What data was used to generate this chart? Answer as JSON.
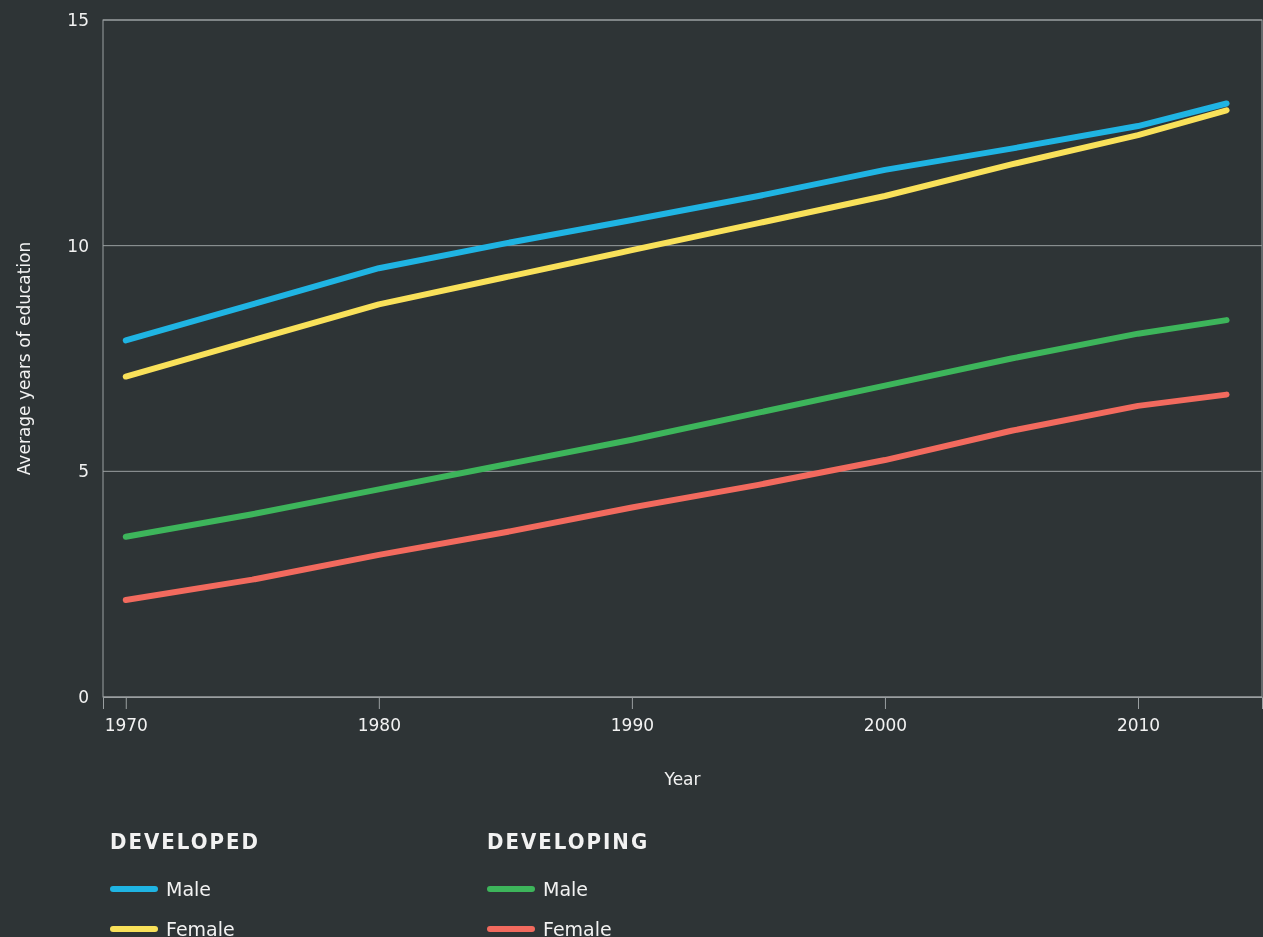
{
  "chart_data": {
    "type": "line",
    "xlabel": "Year",
    "ylabel": "Average years of education",
    "x": [
      1970,
      1975,
      1980,
      1985,
      1990,
      1995,
      2000,
      2005,
      2010,
      2013.5
    ],
    "series": [
      {
        "name": "Male",
        "color": "#1fb4e3",
        "values": [
          7.9,
          8.7,
          9.5,
          10.05,
          10.57,
          11.1,
          11.68,
          12.15,
          12.65,
          13.15
        ]
      },
      {
        "name": "Female",
        "color": "#f9e15a",
        "values": [
          7.1,
          7.9,
          8.7,
          9.3,
          9.9,
          10.5,
          11.1,
          11.8,
          12.45,
          13.0
        ]
      },
      {
        "name": "Male",
        "color": "#3db55b",
        "values": [
          3.55,
          4.05,
          4.6,
          5.15,
          5.7,
          6.3,
          6.9,
          7.5,
          8.05,
          8.35
        ]
      },
      {
        "name": "Female",
        "color": "#f26a5e",
        "values": [
          2.15,
          2.6,
          3.15,
          3.65,
          4.2,
          4.7,
          5.25,
          5.9,
          6.45,
          6.7
        ]
      }
    ],
    "annotations": [
      "DEVELOPED",
      "DEVELOPING"
    ],
    "xlim": [
      1969.1,
      2014.9
    ],
    "xticks": [
      1970,
      1980,
      1990,
      2000,
      2010
    ],
    "ylim": [
      0,
      15
    ],
    "yticks": [
      0,
      5,
      10,
      15
    ],
    "grid": "y",
    "legend": "bottom"
  }
}
